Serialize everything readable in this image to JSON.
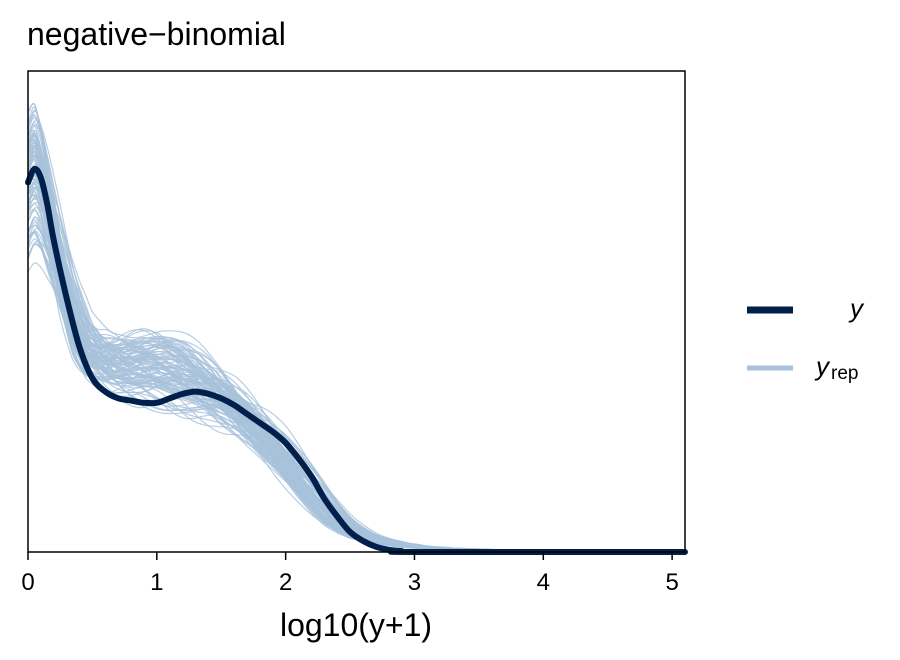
{
  "chart_data": {
    "type": "line",
    "title": "negative−binomial",
    "xlabel": "log10(y+1)",
    "ylabel": "",
    "xlim": [
      0,
      5.1
    ],
    "ylim": [
      0,
      1.08
    ],
    "x_ticks": [
      0,
      1,
      2,
      3,
      4,
      5
    ],
    "y_ticks_shown": false,
    "grid": false,
    "legend_position": "right",
    "legend": [
      {
        "label": "y",
        "sub": "",
        "color": "#011f4b",
        "key": "y"
      },
      {
        "label": "y",
        "sub": "rep",
        "color": "#a8c2db",
        "key": "yrep"
      }
    ],
    "series": [
      {
        "name": "y",
        "color": "#011f4b",
        "x": [
          0,
          0.05,
          0.1,
          0.15,
          0.2,
          0.3,
          0.4,
          0.5,
          0.6,
          0.7,
          0.8,
          0.9,
          1.0,
          1.1,
          1.2,
          1.3,
          1.4,
          1.5,
          1.6,
          1.7,
          1.8,
          1.9,
          2.0,
          2.1,
          2.2,
          2.3,
          2.4,
          2.5,
          2.6,
          2.7,
          2.8,
          2.9,
          3.0,
          5.1
        ],
        "values": [
          0.83,
          0.86,
          0.84,
          0.78,
          0.7,
          0.57,
          0.46,
          0.39,
          0.36,
          0.345,
          0.34,
          0.335,
          0.335,
          0.345,
          0.355,
          0.36,
          0.355,
          0.345,
          0.33,
          0.31,
          0.29,
          0.27,
          0.245,
          0.21,
          0.17,
          0.12,
          0.08,
          0.045,
          0.025,
          0.012,
          0.005,
          0.002,
          0.0,
          0.0
        ]
      }
    ],
    "replicates": {
      "count": 100,
      "color": "#a8c2db",
      "mean_x": [
        0,
        0.05,
        0.1,
        0.2,
        0.3,
        0.4,
        0.5,
        0.6,
        0.7,
        0.8,
        0.9,
        1.0,
        1.1,
        1.2,
        1.3,
        1.4,
        1.5,
        1.6,
        1.7,
        1.8,
        1.9,
        2.0,
        2.1,
        2.2,
        2.3,
        2.4,
        2.5,
        2.6,
        2.7,
        2.8,
        2.9,
        3.0,
        3.2,
        3.5,
        4.0,
        4.5,
        5.1
      ],
      "mean_values": [
        0.82,
        0.85,
        0.82,
        0.7,
        0.57,
        0.48,
        0.44,
        0.43,
        0.42,
        0.42,
        0.42,
        0.415,
        0.41,
        0.4,
        0.385,
        0.37,
        0.35,
        0.325,
        0.3,
        0.27,
        0.24,
        0.205,
        0.17,
        0.135,
        0.1,
        0.07,
        0.05,
        0.035,
        0.027,
        0.021,
        0.016,
        0.012,
        0.008,
        0.005,
        0.003,
        0.002,
        0.0
      ]
    }
  }
}
